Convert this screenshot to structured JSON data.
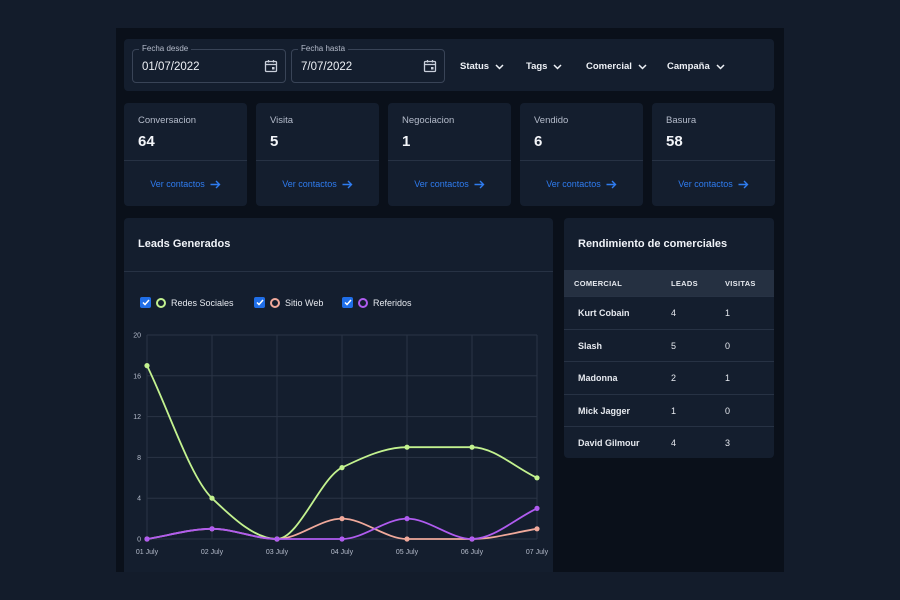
{
  "filters": {
    "fecha_desde": {
      "label": "Fecha desde",
      "value": "01/07/2022"
    },
    "fecha_hasta": {
      "label": "Fecha hasta",
      "value": "7/07/2022"
    },
    "dropdowns": [
      "Status",
      "Tags",
      "Comercial",
      "Campaña"
    ]
  },
  "stats": [
    {
      "label": "Conversacion",
      "value": "64",
      "link": "Ver contactos"
    },
    {
      "label": "Visita",
      "value": "5",
      "link": "Ver contactos"
    },
    {
      "label": "Negociacion",
      "value": "1",
      "link": "Ver contactos"
    },
    {
      "label": "Vendido",
      "value": "6",
      "link": "Ver contactos"
    },
    {
      "label": "Basura",
      "value": "58",
      "link": "Ver contactos"
    }
  ],
  "leads": {
    "title": "Leads Generados",
    "legend": [
      {
        "name": "Redes Sociales",
        "color": "#c3f28f",
        "checked": true
      },
      {
        "name": "Sitio Web",
        "color": "#f0a99b",
        "checked": true
      },
      {
        "name": "Referidos",
        "color": "#b05cf0",
        "checked": true
      }
    ]
  },
  "chart_data": {
    "type": "line",
    "x": [
      "01 July",
      "02 July",
      "03 July",
      "04 July",
      "05 July",
      "06 July",
      "07 July"
    ],
    "yticks": [
      "0",
      "4",
      "8",
      "12",
      "16",
      "20"
    ],
    "ylim": [
      0,
      20
    ],
    "grid": true,
    "smooth": true,
    "series": [
      {
        "name": "Redes Sociales",
        "color": "#c3f28f",
        "values": [
          17,
          4,
          0,
          7,
          9,
          9,
          6
        ]
      },
      {
        "name": "Sitio Web",
        "color": "#f0a99b",
        "values": [
          0,
          1,
          0,
          2,
          0,
          0,
          1
        ]
      },
      {
        "name": "Referidos",
        "color": "#b05cf0",
        "values": [
          0,
          1,
          0,
          0,
          2,
          0,
          3
        ]
      }
    ]
  },
  "comerciales": {
    "title": "Rendimiento de comerciales",
    "headers": [
      "COMERCIAL",
      "LEADS",
      "VISITAS"
    ],
    "rows": [
      {
        "name": "Kurt Cobain",
        "leads": "4",
        "visitas": "1"
      },
      {
        "name": "Slash",
        "leads": "5",
        "visitas": "0"
      },
      {
        "name": "Madonna",
        "leads": "2",
        "visitas": "1"
      },
      {
        "name": "Mick Jagger",
        "leads": "1",
        "visitas": "0"
      },
      {
        "name": "David Gilmour",
        "leads": "4",
        "visitas": "3"
      }
    ]
  }
}
